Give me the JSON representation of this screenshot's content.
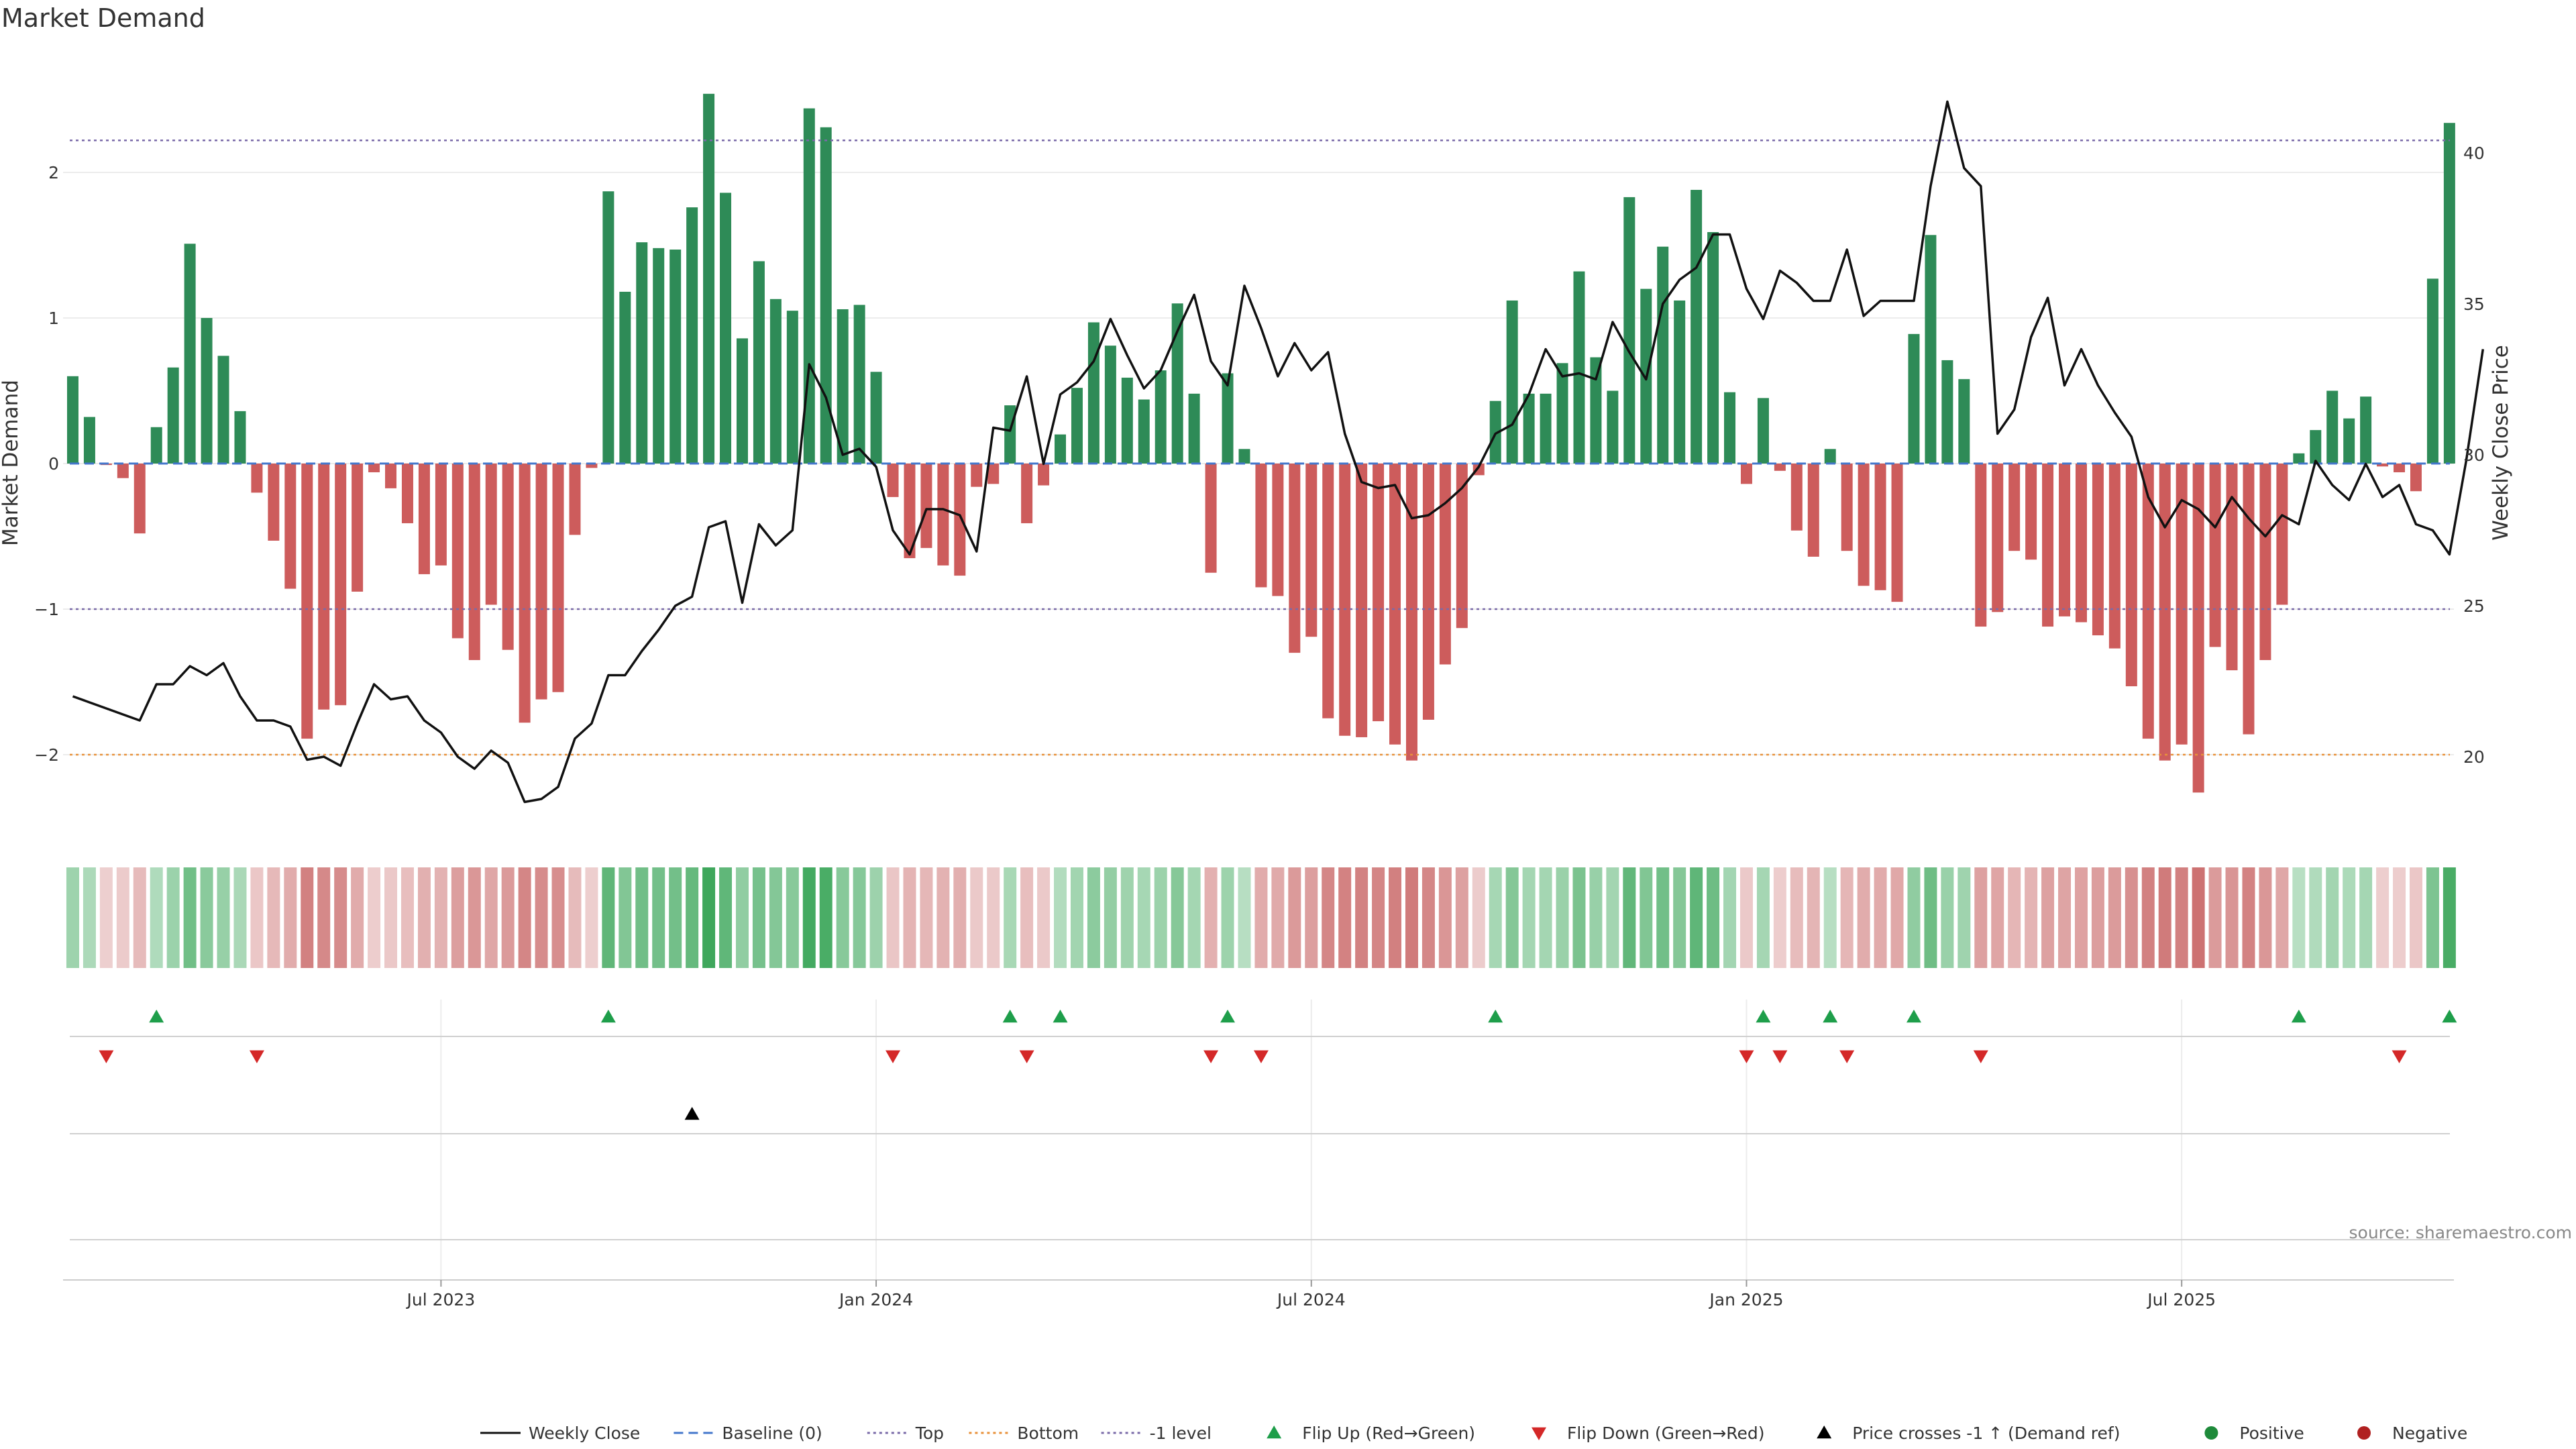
{
  "chart_data": {
    "type": "bar",
    "title": "Market Demand",
    "ylabel": "Market Demand",
    "y2label": "Weekly Close Price",
    "ylim": [
      -2.5,
      2.8
    ],
    "y2lim": [
      17.5,
      44.5
    ],
    "yticks": [
      -2,
      -1,
      0,
      1,
      2
    ],
    "y2ticks": [
      20,
      25,
      30,
      35,
      40
    ],
    "xticks": [
      {
        "week": 22,
        "label": "Jul 2023"
      },
      {
        "week": 48,
        "label": "Jan 2024"
      },
      {
        "week": 74,
        "label": "Jul 2024"
      },
      {
        "week": 100,
        "label": "Jan 2025"
      },
      {
        "week": 126,
        "label": "Jul 2025"
      }
    ],
    "reference_lines": [
      {
        "name": "Top",
        "value": 2.22,
        "color": "#7a6aa8"
      },
      {
        "name": "-1 level",
        "value": -1.0,
        "color": "#7a6aa8"
      },
      {
        "name": "Bottom",
        "value": -2.0,
        "color": "#e8913a"
      },
      {
        "name": "Baseline (0)",
        "value": 0,
        "color": "#4477cc"
      }
    ],
    "series": [
      {
        "name": "Market Demand",
        "type": "bar",
        "values": [
          0.6,
          0.32,
          -0.01,
          -0.1,
          -0.48,
          0.25,
          0.66,
          1.51,
          1.0,
          0.74,
          0.36,
          -0.2,
          -0.53,
          -0.86,
          -1.89,
          -1.69,
          -1.66,
          -0.88,
          -0.06,
          -0.17,
          -0.41,
          -0.76,
          -0.7,
          -1.2,
          -1.35,
          -0.97,
          -1.28,
          -1.78,
          -1.62,
          -1.57,
          -0.49,
          -0.03,
          1.87,
          1.18,
          1.52,
          1.48,
          1.47,
          1.76,
          2.54,
          1.86,
          0.86,
          1.39,
          1.13,
          1.05,
          2.44,
          2.31,
          1.06,
          1.09,
          0.63,
          -0.23,
          -0.65,
          -0.58,
          -0.7,
          -0.77,
          -0.16,
          -0.14,
          0.4,
          -0.41,
          -0.15,
          0.2,
          0.52,
          0.97,
          0.81,
          0.59,
          0.44,
          0.64,
          1.1,
          0.48,
          -0.75,
          0.62,
          0.1,
          -0.85,
          -0.91,
          -1.3,
          -1.19,
          -1.75,
          -1.87,
          -1.88,
          -1.77,
          -1.93,
          -2.04,
          -1.76,
          -1.38,
          -1.13,
          -0.08,
          0.43,
          1.12,
          0.48,
          0.48,
          0.69,
          1.32,
          0.73,
          0.5,
          1.83,
          1.2,
          1.49,
          1.12,
          1.88,
          1.59,
          0.49,
          -0.14,
          0.45,
          -0.05,
          -0.46,
          -0.64,
          0.1,
          -0.6,
          -0.84,
          -0.87,
          -0.95,
          0.89,
          1.57,
          0.71,
          0.58,
          -1.12,
          -1.02,
          -0.6,
          -0.66,
          -1.12,
          -1.05,
          -1.09,
          -1.18,
          -1.27,
          -1.53,
          -1.89,
          -2.04,
          -1.93,
          -2.26,
          -1.26,
          -1.42,
          -1.86,
          -1.35,
          -0.97,
          0.07,
          0.23,
          0.5,
          0.31,
          0.46,
          -0.02,
          -0.06,
          -0.19,
          1.27,
          2.34
        ]
      },
      {
        "name": "Weekly Close",
        "type": "line",
        "axis": "right",
        "values": [
          22.0,
          21.8,
          21.6,
          21.4,
          21.2,
          22.4,
          22.4,
          23.0,
          22.7,
          23.1,
          22.0,
          21.2,
          21.2,
          21.0,
          19.9,
          20.0,
          19.7,
          21.1,
          22.4,
          21.9,
          22.0,
          21.2,
          20.8,
          20.0,
          19.6,
          20.2,
          19.8,
          18.5,
          18.6,
          19.0,
          20.6,
          21.1,
          22.7,
          22.7,
          23.5,
          24.2,
          25.0,
          25.3,
          27.6,
          27.8,
          25.1,
          27.7,
          27.0,
          27.5,
          33.0,
          31.9,
          30.0,
          30.2,
          29.6,
          27.5,
          26.7,
          28.2,
          28.2,
          28.0,
          26.8,
          30.9,
          30.8,
          32.6,
          29.7,
          32.0,
          32.4,
          33.1,
          34.5,
          33.3,
          32.2,
          32.8,
          34.1,
          35.3,
          33.1,
          32.3,
          35.6,
          34.2,
          32.6,
          33.7,
          32.8,
          33.4,
          30.7,
          29.1,
          28.9,
          29.0,
          27.9,
          28.0,
          28.4,
          28.9,
          29.6,
          30.7,
          31.0,
          32.0,
          33.5,
          32.6,
          32.7,
          32.5,
          34.4,
          33.4,
          32.5,
          35.0,
          35.8,
          36.2,
          37.3,
          37.3,
          35.5,
          34.5,
          36.1,
          35.7,
          35.1,
          35.1,
          36.8,
          34.6,
          35.1,
          35.1,
          35.1,
          38.9,
          41.7,
          39.5,
          38.9,
          30.7,
          31.5,
          33.9,
          35.2,
          32.3,
          33.5,
          32.3,
          31.4,
          30.6,
          28.6,
          27.6,
          28.5,
          28.2,
          27.6,
          28.6,
          27.9,
          27.3,
          28.0,
          27.7,
          29.8,
          29.0,
          28.5,
          29.7,
          28.6,
          29.0,
          27.7,
          27.5,
          26.7,
          29.8,
          33.5
        ]
      }
    ],
    "heatmap_strip": "Market Demand by week (green = positive, red = negative)",
    "signals": [
      {
        "name": "Flip Up (Red→Green)",
        "symbol": "triangle-up",
        "color": "#1e9e4a",
        "weeks": [
          5,
          32,
          56,
          59,
          69,
          85,
          101,
          105,
          110,
          133,
          142
        ]
      },
      {
        "name": "Flip Down (Green→Red)",
        "symbol": "triangle-down",
        "color": "#d42828",
        "weeks": [
          2,
          11,
          49,
          57,
          68,
          71,
          100,
          102,
          106,
          114,
          139
        ]
      },
      {
        "name": "Price crosses -1 ↑ (Demand ref)",
        "symbol": "triangle-up",
        "color": "#000000",
        "weeks": [
          37
        ]
      },
      {
        "name": "Positive",
        "symbol": "circle",
        "color": "#1e8a3a",
        "weeks": []
      },
      {
        "name": "Negative",
        "symbol": "circle",
        "color": "#b02020",
        "weeks": []
      }
    ],
    "legend": {
      "position": "bottom",
      "items": [
        {
          "label": "Weekly Close",
          "kind": "line",
          "color": "#111111"
        },
        {
          "label": "Baseline (0)",
          "kind": "dash",
          "color": "#4477cc"
        },
        {
          "label": "Top",
          "kind": "dot",
          "color": "#7a6aa8"
        },
        {
          "label": "Bottom",
          "kind": "dot",
          "color": "#e8913a"
        },
        {
          "label": "-1 level",
          "kind": "dot",
          "color": "#7a6aa8"
        },
        {
          "label": "Flip Up (Red→Green)",
          "kind": "tri-up",
          "color": "#1e9e4a"
        },
        {
          "label": "Flip Down (Green→Red)",
          "kind": "tri-down",
          "color": "#d42828"
        },
        {
          "label": "Price crosses -1 ↑ (Demand ref)",
          "kind": "tri-up",
          "color": "#000000"
        },
        {
          "label": "Positive",
          "kind": "circle",
          "color": "#1e8a3a"
        },
        {
          "label": "Negative",
          "kind": "circle",
          "color": "#b02020"
        }
      ]
    },
    "colors": {
      "positive": "#2e8b57",
      "negative": "#cd5c5c",
      "line": "#111111"
    },
    "source": "source: sharemaestro.com"
  }
}
